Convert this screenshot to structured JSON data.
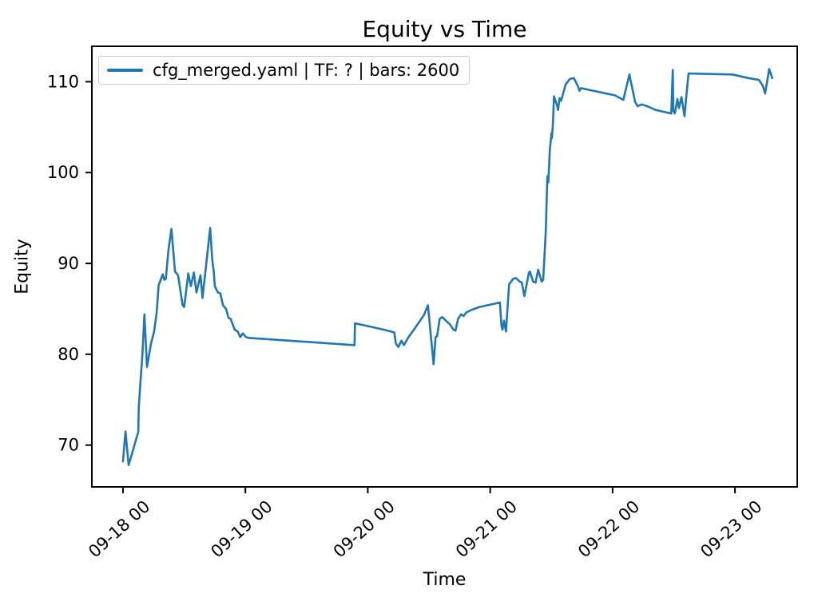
{
  "figure": {
    "background": "#ffffff",
    "spine_color": "#000000"
  },
  "chart_data": {
    "type": "line",
    "title": "Equity vs Time",
    "xlabel": "Time",
    "ylabel": "Equity",
    "grid": false,
    "legend": {
      "position": "upper left",
      "entries": [
        {
          "label": "cfg_merged.yaml | TF: ? | bars: 2600",
          "color": "#1f77b4"
        }
      ]
    },
    "line_color": "#1f77b4",
    "line_width": 2.6,
    "x_axis_note": "hours relative to first tick (09-18 00:00)",
    "xlim": [
      -6.1,
      132.2
    ],
    "ylim": [
      65.4,
      113.9
    ],
    "xticks": [
      {
        "pos": 0,
        "label": "09-18 00"
      },
      {
        "pos": 24,
        "label": "09-19 00"
      },
      {
        "pos": 48,
        "label": "09-20 00"
      },
      {
        "pos": 72,
        "label": "09-21 00"
      },
      {
        "pos": 96,
        "label": "09-22 00"
      },
      {
        "pos": 120,
        "label": "09-23 00"
      }
    ],
    "yticks": [
      70,
      80,
      90,
      100,
      110
    ],
    "series": [
      {
        "name": "cfg_merged.yaml | TF: ? | bars: 2600",
        "points": [
          [
            0,
            68.2
          ],
          [
            0.5,
            71.5
          ],
          [
            1.1,
            67.8
          ],
          [
            1.9,
            69.3
          ],
          [
            2.7,
            70.9
          ],
          [
            3.0,
            71.4
          ],
          [
            3.1,
            74.2
          ],
          [
            3.4,
            76.8
          ],
          [
            3.8,
            79.9
          ],
          [
            4.2,
            84.4
          ],
          [
            4.7,
            78.6
          ],
          [
            5.5,
            81.2
          ],
          [
            6.1,
            82.5
          ],
          [
            6.6,
            84.6
          ],
          [
            7.0,
            87.6
          ],
          [
            7.4,
            88.2
          ],
          [
            7.8,
            88.8
          ],
          [
            8.1,
            88.2
          ],
          [
            8.4,
            88.3
          ],
          [
            8.9,
            91.4
          ],
          [
            9.5,
            93.8
          ],
          [
            10.2,
            89.1
          ],
          [
            10.8,
            88.7
          ],
          [
            11.7,
            85.4
          ],
          [
            12.0,
            85.2
          ],
          [
            12.8,
            88.9
          ],
          [
            13.3,
            87.5
          ],
          [
            13.9,
            89.0
          ],
          [
            14.4,
            86.8
          ],
          [
            15.2,
            88.7
          ],
          [
            15.6,
            86.2
          ],
          [
            17.1,
            93.9
          ],
          [
            17.5,
            90.4
          ],
          [
            17.8,
            89.1
          ],
          [
            18.0,
            87.5
          ],
          [
            18.6,
            86.8
          ],
          [
            19.1,
            86.7
          ],
          [
            19.6,
            85.4
          ],
          [
            20.2,
            85.0
          ],
          [
            20.7,
            84.0
          ],
          [
            21.1,
            83.9
          ],
          [
            21.9,
            82.7
          ],
          [
            22.5,
            82.5
          ],
          [
            23.0,
            81.9
          ],
          [
            23.5,
            82.3
          ],
          [
            24.1,
            81.9
          ],
          [
            24.6,
            81.8
          ],
          [
            45.4,
            81.0
          ],
          [
            45.5,
            83.4
          ],
          [
            47.2,
            83.2
          ],
          [
            51.2,
            82.7
          ],
          [
            53.2,
            82.4
          ],
          [
            53.5,
            81.2
          ],
          [
            54.0,
            80.8
          ],
          [
            54.6,
            81.5
          ],
          [
            55.1,
            81.0
          ],
          [
            55.9,
            81.8
          ],
          [
            57.4,
            83.0
          ],
          [
            59.0,
            84.3
          ],
          [
            59.8,
            85.4
          ],
          [
            60.9,
            78.9
          ],
          [
            61.3,
            81.9
          ],
          [
            61.6,
            82.0
          ],
          [
            62.1,
            83.9
          ],
          [
            62.6,
            84.1
          ],
          [
            63.3,
            83.7
          ],
          [
            64.1,
            83.3
          ],
          [
            64.8,
            82.7
          ],
          [
            65.2,
            82.6
          ],
          [
            65.7,
            83.9
          ],
          [
            66.3,
            84.4
          ],
          [
            66.8,
            84.2
          ],
          [
            67.3,
            84.6
          ],
          [
            68.4,
            84.9
          ],
          [
            69.9,
            85.2
          ],
          [
            71.5,
            85.4
          ],
          [
            73.1,
            85.6
          ],
          [
            73.9,
            85.7
          ],
          [
            74.2,
            83.2
          ],
          [
            74.4,
            82.7
          ],
          [
            74.7,
            83.7
          ],
          [
            75.1,
            82.5
          ],
          [
            75.7,
            87.7
          ],
          [
            76.5,
            88.3
          ],
          [
            77.0,
            88.4
          ],
          [
            77.8,
            88.0
          ],
          [
            78.2,
            87.9
          ],
          [
            78.7,
            86.4
          ],
          [
            79.6,
            89.0
          ],
          [
            79.8,
            89.1
          ],
          [
            80.4,
            88.0
          ],
          [
            80.9,
            87.9
          ],
          [
            81.4,
            89.3
          ],
          [
            82.1,
            88.0
          ],
          [
            82.4,
            88.2
          ],
          [
            82.9,
            93.5
          ],
          [
            83.2,
            99.6
          ],
          [
            83.4,
            98.9
          ],
          [
            83.7,
            102.5
          ],
          [
            84.0,
            104.3
          ],
          [
            84.1,
            103.8
          ],
          [
            84.3,
            105.4
          ],
          [
            84.5,
            108.4
          ],
          [
            85.1,
            107.4
          ],
          [
            85.3,
            106.9
          ],
          [
            85.6,
            108.2
          ],
          [
            85.9,
            107.9
          ],
          [
            86.8,
            109.7
          ],
          [
            87.6,
            110.3
          ],
          [
            88.4,
            110.4
          ],
          [
            89.2,
            109.5
          ],
          [
            89.5,
            109.0
          ],
          [
            89.8,
            109.3
          ],
          [
            90.6,
            109.2
          ],
          [
            91.4,
            109.1
          ],
          [
            96.5,
            108.5
          ],
          [
            98.1,
            108.0
          ],
          [
            99.3,
            110.8
          ],
          [
            100.4,
            107.8
          ],
          [
            100.9,
            107.3
          ],
          [
            101.7,
            107.5
          ],
          [
            102.8,
            107.3
          ],
          [
            104.4,
            106.9
          ],
          [
            105.9,
            106.7
          ],
          [
            107.5,
            106.5
          ],
          [
            107.8,
            111.3
          ],
          [
            107.9,
            106.8
          ],
          [
            108.2,
            106.5
          ],
          [
            108.7,
            108.1
          ],
          [
            109.0,
            107.1
          ],
          [
            109.5,
            108.3
          ],
          [
            110.1,
            106.2
          ],
          [
            110.6,
            109.3
          ],
          [
            110.9,
            110.9
          ],
          [
            119.5,
            110.8
          ],
          [
            122.6,
            110.4
          ],
          [
            124.7,
            110.2
          ],
          [
            125.5,
            109.5
          ],
          [
            125.9,
            108.7
          ],
          [
            126.7,
            111.4
          ],
          [
            127.3,
            110.4
          ]
        ]
      }
    ]
  }
}
